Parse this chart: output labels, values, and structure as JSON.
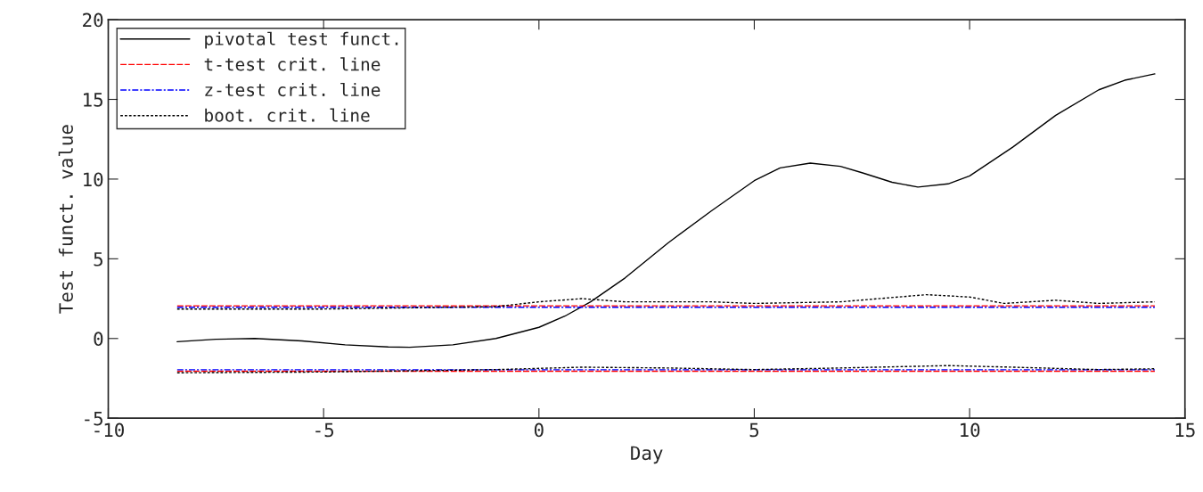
{
  "chart_data": {
    "type": "line",
    "xlabel": "Day",
    "ylabel": "Test funct. value",
    "xlim": [
      -10,
      15
    ],
    "ylim": [
      -5,
      20
    ],
    "xticks": [
      -10,
      -5,
      0,
      5,
      10,
      15
    ],
    "yticks": [
      -5,
      0,
      5,
      10,
      15,
      20
    ],
    "grid": false,
    "legend": "top left",
    "series": [
      {
        "name": "pivotal test funct.",
        "color": "#000000",
        "line_style": "solid",
        "x": [
          -8.4,
          -7.5,
          -6.6,
          -5.5,
          -4.5,
          -3.5,
          -3,
          -2,
          -1,
          0,
          0.6,
          1.2,
          2,
          3,
          4,
          5,
          5.6,
          6.3,
          7,
          7.5,
          8.2,
          8.8,
          9.5,
          10,
          11,
          12,
          13,
          13.6,
          14.3
        ],
        "values": [
          -0.2,
          -0.05,
          0.0,
          -0.15,
          -0.4,
          -0.53,
          -0.55,
          -0.4,
          0.0,
          0.7,
          1.4,
          2.3,
          3.8,
          6,
          8,
          9.9,
          10.7,
          11.0,
          10.8,
          10.4,
          9.8,
          9.5,
          9.7,
          10.2,
          12,
          14,
          15.6,
          16.2,
          16.6
        ]
      },
      {
        "name": "t-test crit. line",
        "color": "#ff0000",
        "line_style": "dashed",
        "x": [
          -8.4,
          14.3
        ],
        "values": [
          2.05,
          2.05
        ]
      },
      {
        "color": "#ff0000",
        "line_style": "dashed",
        "x": [
          -8.4,
          14.3
        ],
        "values": [
          -2.05,
          -2.05
        ]
      },
      {
        "name": "z-test crit. line",
        "color": "#0000ff",
        "line_style": "dashdot",
        "x": [
          -8.4,
          14.3
        ],
        "values": [
          1.96,
          1.96
        ]
      },
      {
        "color": "#0000ff",
        "line_style": "dashdot",
        "x": [
          -8.4,
          14.3
        ],
        "values": [
          -1.96,
          -1.96
        ]
      },
      {
        "name": "boot. crit. line",
        "color": "#000000",
        "line_style": "dotted",
        "x": [
          -8.4,
          -5,
          -1,
          0,
          1,
          2,
          4,
          5,
          7,
          9,
          10,
          10.8,
          12,
          13,
          14.3
        ],
        "values": [
          1.85,
          1.85,
          2.0,
          2.3,
          2.5,
          2.3,
          2.3,
          2.2,
          2.3,
          2.75,
          2.6,
          2.2,
          2.4,
          2.2,
          2.3
        ]
      },
      {
        "color": "#000000",
        "line_style": "dotted",
        "x": [
          -8.4,
          -5,
          -1,
          1,
          3,
          5,
          7,
          9.5,
          11,
          13,
          14.3
        ],
        "values": [
          -2.15,
          -2.1,
          -1.95,
          -1.8,
          -1.85,
          -1.95,
          -1.85,
          -1.7,
          -1.8,
          -1.95,
          -1.9
        ]
      }
    ]
  }
}
